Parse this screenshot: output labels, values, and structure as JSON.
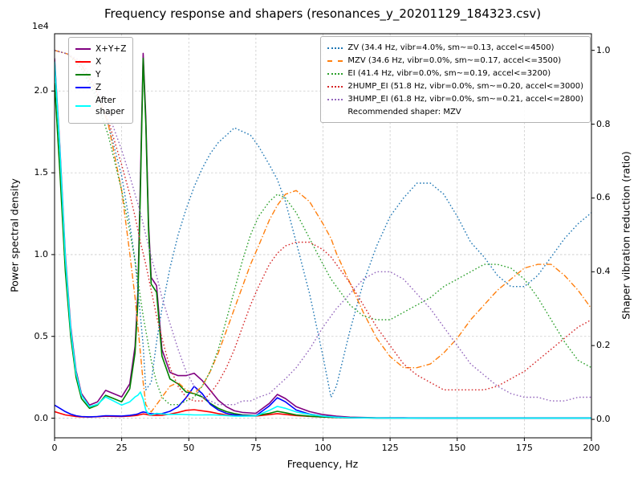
{
  "title": "Frequency response and shapers (resonances_y_20201129_184323.csv)",
  "axes": {
    "x": {
      "label": "Frequency, Hz",
      "min": 0,
      "max": 200,
      "ticks": [
        0,
        25,
        50,
        75,
        100,
        125,
        150,
        175,
        200
      ],
      "tick_labels": [
        "0",
        "25",
        "50",
        "75",
        "100",
        "125",
        "150",
        "175",
        "200"
      ]
    },
    "y_left": {
      "label": "Power spectral density",
      "offset_text": "1e4",
      "min": -1200,
      "max": 23500,
      "tick_values": [
        0,
        5000,
        10000,
        15000,
        20000
      ],
      "tick_labels": [
        "0.0",
        "0.5",
        "1.0",
        "1.5",
        "2.0"
      ]
    },
    "y_right": {
      "label": "Shaper vibration reduction (ratio)",
      "min": -0.05,
      "max": 1.045,
      "tick_values": [
        0,
        0.2,
        0.4,
        0.6,
        0.8,
        1.0
      ],
      "tick_labels": [
        "0.0",
        "0.2",
        "0.4",
        "0.6",
        "0.8",
        "1.0"
      ]
    }
  },
  "legend_left": {
    "items": [
      {
        "label": "X+Y+Z",
        "color": "#800080",
        "style": "solid"
      },
      {
        "label": "X",
        "color": "#ff0000",
        "style": "solid"
      },
      {
        "label": "Y",
        "color": "#008000",
        "style": "solid"
      },
      {
        "label": "Z",
        "color": "#0000ff",
        "style": "solid"
      },
      {
        "label": "After\nshaper",
        "color": "#00ffff",
        "style": "solid"
      }
    ]
  },
  "legend_right": {
    "items": [
      {
        "label": "ZV (34.4 Hz, vibr=4.0%, sm~=0.13, accel<=4500)",
        "color": "#1f77b4",
        "style": "dotted"
      },
      {
        "label": "MZV (34.6 Hz, vibr=0.0%, sm~=0.17, accel<=3500)",
        "color": "#ff7f0e",
        "style": "dashdot"
      },
      {
        "label": "EI (41.4 Hz, vibr=0.0%, sm~=0.19, accel<=3200)",
        "color": "#2ca02c",
        "style": "dotted"
      },
      {
        "label": "2HUMP_EI (51.8 Hz, vibr=0.0%, sm~=0.20, accel<=3000)",
        "color": "#d62728",
        "style": "dotted"
      },
      {
        "label": "3HUMP_EI (61.8 Hz, vibr=0.0%, sm~=0.21, accel<=2800)",
        "color": "#9467bd",
        "style": "dotted"
      }
    ],
    "note": "Recommended shaper: MZV"
  },
  "chart_data": {
    "type": "line",
    "title": "Frequency response and shapers (resonances_y_20201129_184323.csv)",
    "xlabel": "Frequency, Hz",
    "ylabel_left": "Power spectral density",
    "ylabel_right": "Shaper vibration reduction (ratio)",
    "xlim": [
      0,
      200
    ],
    "ylim_left_1e4": [
      0,
      2.2
    ],
    "ylim_right": [
      0,
      1.0
    ],
    "grid": true,
    "psd": {
      "axis": "left",
      "x": [
        0,
        2,
        4,
        6,
        8,
        10,
        13,
        16,
        19,
        22,
        25,
        28,
        30,
        31,
        32,
        33,
        34,
        35,
        36,
        38,
        40,
        43,
        46,
        49,
        52,
        55,
        58,
        61,
        64,
        67,
        70,
        75,
        80,
        83,
        86,
        90,
        95,
        100,
        105,
        110,
        120,
        130,
        140,
        160,
        180,
        200
      ],
      "series": [
        {
          "name": "X+Y+Z",
          "color": "#800080",
          "style": "solid",
          "y": [
            22000,
            16500,
            10000,
            5600,
            2900,
            1500,
            800,
            1000,
            1700,
            1500,
            1300,
            2100,
            4400,
            7600,
            14700,
            22300,
            18400,
            11900,
            8600,
            8100,
            4200,
            2800,
            2600,
            2600,
            2750,
            2300,
            1700,
            1100,
            700,
            450,
            350,
            300,
            900,
            1450,
            1200,
            700,
            400,
            220,
            120,
            60,
            30,
            25,
            20,
            20,
            20,
            20
          ]
        },
        {
          "name": "X",
          "color": "#ff0000",
          "style": "solid",
          "y": [
            400,
            300,
            200,
            150,
            100,
            80,
            70,
            90,
            120,
            110,
            100,
            130,
            160,
            180,
            220,
            260,
            240,
            200,
            180,
            170,
            180,
            250,
            350,
            480,
            520,
            450,
            380,
            280,
            200,
            160,
            140,
            130,
            220,
            280,
            230,
            160,
            110,
            70,
            40,
            25,
            15,
            12,
            10,
            10,
            10,
            10
          ]
        },
        {
          "name": "Y",
          "color": "#008000",
          "style": "solid",
          "y": [
            20500,
            15000,
            9000,
            5000,
            2500,
            1200,
            600,
            800,
            1400,
            1200,
            1000,
            1800,
            4000,
            7000,
            14000,
            22000,
            18000,
            11500,
            8200,
            7700,
            3800,
            2400,
            2100,
            1600,
            1500,
            1300,
            900,
            600,
            400,
            280,
            200,
            160,
            300,
            420,
            330,
            200,
            120,
            70,
            40,
            25,
            15,
            12,
            10,
            10,
            10,
            10
          ]
        },
        {
          "name": "Z",
          "color": "#0000ff",
          "style": "solid",
          "y": [
            800,
            600,
            400,
            250,
            150,
            100,
            80,
            100,
            150,
            140,
            130,
            170,
            220,
            260,
            330,
            380,
            350,
            300,
            280,
            260,
            280,
            420,
            700,
            1250,
            1950,
            1500,
            850,
            500,
            300,
            200,
            160,
            150,
            750,
            1250,
            1000,
            500,
            250,
            120,
            60,
            30,
            15,
            12,
            10,
            10,
            10,
            10
          ]
        },
        {
          "name": "After shaper",
          "color": "#00ffff",
          "style": "solid",
          "y": [
            21800,
            16300,
            9800,
            5400,
            2750,
            1400,
            700,
            850,
            1300,
            1050,
            800,
            1000,
            1300,
            1400,
            1600,
            1150,
            500,
            250,
            200,
            300,
            260,
            230,
            240,
            220,
            200,
            200,
            210,
            190,
            160,
            130,
            120,
            140,
            480,
            720,
            600,
            380,
            230,
            120,
            60,
            30,
            15,
            10,
            10,
            10,
            10,
            10
          ]
        }
      ]
    },
    "shapers": {
      "axis": "right",
      "x": [
        0,
        5,
        10,
        15,
        20,
        25,
        28,
        30,
        32,
        33,
        34,
        36,
        38,
        40,
        43,
        46,
        49,
        52,
        55,
        58,
        61,
        64,
        67,
        70,
        73,
        76,
        80,
        83,
        86,
        90,
        95,
        100,
        103,
        105,
        110,
        115,
        120,
        125,
        130,
        135,
        140,
        145,
        150,
        155,
        160,
        165,
        170,
        175,
        180,
        185,
        190,
        195,
        200
      ],
      "series": [
        {
          "name": "ZV",
          "color": "#1f77b4",
          "style": "dotted",
          "y": [
            1.0,
            0.99,
            0.95,
            0.89,
            0.8,
            0.66,
            0.53,
            0.43,
            0.28,
            0.2,
            0.08,
            0.1,
            0.21,
            0.3,
            0.41,
            0.5,
            0.57,
            0.63,
            0.68,
            0.72,
            0.75,
            0.77,
            0.79,
            0.78,
            0.77,
            0.74,
            0.69,
            0.65,
            0.59,
            0.48,
            0.34,
            0.17,
            0.06,
            0.09,
            0.24,
            0.37,
            0.47,
            0.55,
            0.6,
            0.64,
            0.64,
            0.61,
            0.55,
            0.48,
            0.44,
            0.39,
            0.36,
            0.36,
            0.39,
            0.44,
            0.49,
            0.53,
            0.56
          ]
        },
        {
          "name": "MZV",
          "color": "#ff7f0e",
          "style": "dashdot",
          "y": [
            1.0,
            0.99,
            0.96,
            0.9,
            0.8,
            0.62,
            0.45,
            0.33,
            0.18,
            0.1,
            0.04,
            0.02,
            0.04,
            0.06,
            0.09,
            0.1,
            0.08,
            0.07,
            0.09,
            0.13,
            0.18,
            0.24,
            0.3,
            0.36,
            0.42,
            0.47,
            0.54,
            0.58,
            0.61,
            0.62,
            0.59,
            0.53,
            0.49,
            0.45,
            0.37,
            0.29,
            0.22,
            0.17,
            0.14,
            0.14,
            0.15,
            0.18,
            0.22,
            0.27,
            0.31,
            0.35,
            0.38,
            0.41,
            0.42,
            0.42,
            0.39,
            0.35,
            0.3
          ]
        },
        {
          "name": "EI",
          "color": "#2ca02c",
          "style": "dotted",
          "y": [
            1.0,
            0.99,
            0.95,
            0.88,
            0.77,
            0.62,
            0.51,
            0.43,
            0.33,
            0.28,
            0.24,
            0.16,
            0.1,
            0.06,
            0.04,
            0.04,
            0.05,
            0.06,
            0.09,
            0.13,
            0.19,
            0.27,
            0.35,
            0.43,
            0.5,
            0.55,
            0.59,
            0.61,
            0.6,
            0.56,
            0.49,
            0.42,
            0.38,
            0.36,
            0.31,
            0.28,
            0.27,
            0.27,
            0.29,
            0.31,
            0.33,
            0.36,
            0.38,
            0.4,
            0.42,
            0.42,
            0.41,
            0.38,
            0.33,
            0.27,
            0.21,
            0.16,
            0.14
          ]
        },
        {
          "name": "2HUMP_EI",
          "color": "#d62728",
          "style": "dotted",
          "y": [
            1.0,
            0.99,
            0.96,
            0.9,
            0.81,
            0.69,
            0.61,
            0.55,
            0.48,
            0.45,
            0.42,
            0.35,
            0.28,
            0.22,
            0.14,
            0.09,
            0.06,
            0.05,
            0.05,
            0.07,
            0.1,
            0.14,
            0.19,
            0.25,
            0.31,
            0.36,
            0.42,
            0.45,
            0.47,
            0.48,
            0.48,
            0.46,
            0.44,
            0.42,
            0.37,
            0.31,
            0.25,
            0.2,
            0.15,
            0.12,
            0.1,
            0.08,
            0.08,
            0.08,
            0.08,
            0.09,
            0.11,
            0.13,
            0.16,
            0.19,
            0.22,
            0.25,
            0.27
          ]
        },
        {
          "name": "3HUMP_EI",
          "color": "#9467bd",
          "style": "dotted",
          "y": [
            1.0,
            0.99,
            0.97,
            0.91,
            0.83,
            0.73,
            0.66,
            0.61,
            0.56,
            0.53,
            0.5,
            0.44,
            0.39,
            0.33,
            0.26,
            0.19,
            0.13,
            0.09,
            0.06,
            0.05,
            0.04,
            0.04,
            0.04,
            0.05,
            0.05,
            0.06,
            0.07,
            0.09,
            0.11,
            0.14,
            0.19,
            0.25,
            0.28,
            0.3,
            0.34,
            0.38,
            0.4,
            0.4,
            0.38,
            0.34,
            0.3,
            0.25,
            0.2,
            0.15,
            0.12,
            0.09,
            0.07,
            0.06,
            0.06,
            0.05,
            0.05,
            0.06,
            0.06
          ]
        }
      ]
    }
  }
}
